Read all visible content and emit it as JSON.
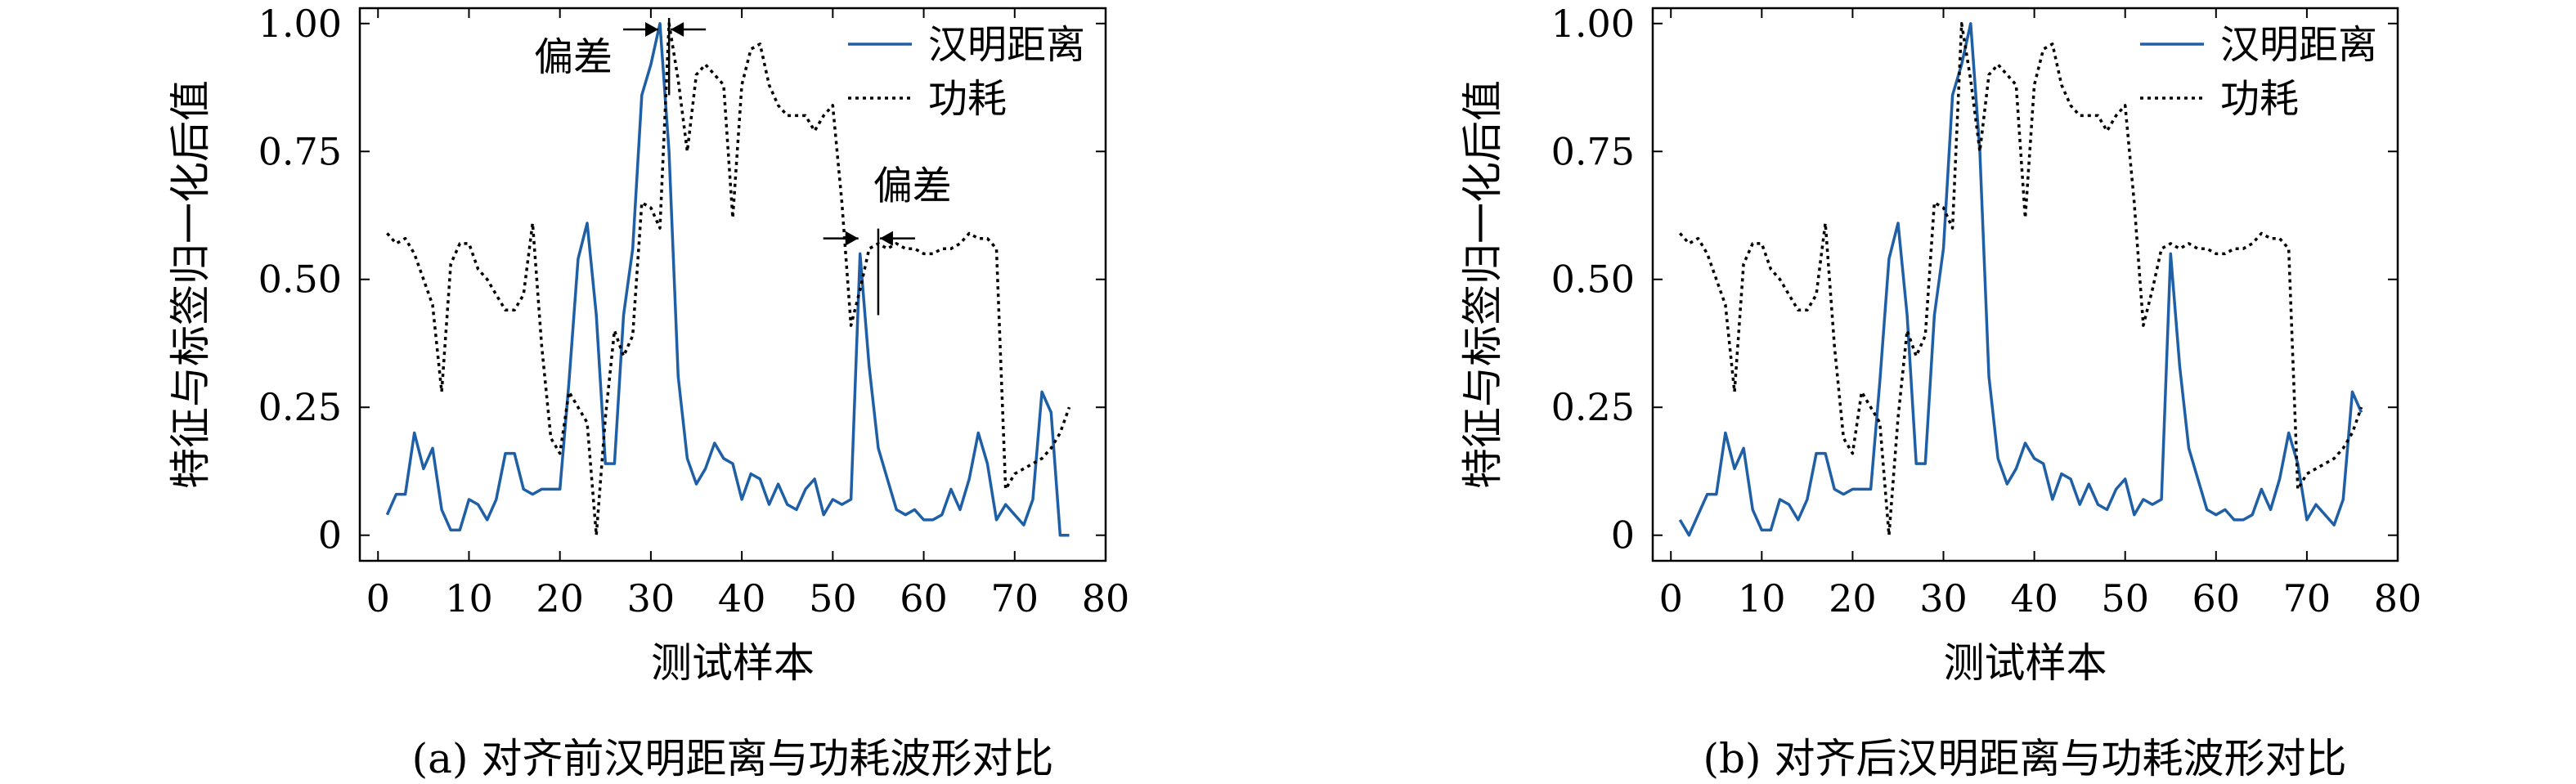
{
  "figure": {
    "colors": {
      "hamming": "#1f5fa6",
      "power": "#000000"
    }
  },
  "chart_data": [
    {
      "type": "line",
      "caption": "(a) 对齐前汉明距离与功耗波形对比",
      "xlabel": "测试样本",
      "ylabel": "特征与标签归一化后值",
      "xlim": [
        -2,
        80
      ],
      "ylim": [
        -0.05,
        1.03
      ],
      "xticks": [
        0,
        10,
        20,
        30,
        40,
        50,
        60,
        70,
        80
      ],
      "yticks": [
        0,
        0.25,
        0.5,
        0.75,
        1.0
      ],
      "ytick_labels": [
        "0",
        "0.25",
        "0.50",
        "0.75",
        "1.00"
      ],
      "legend": {
        "position": "top-right",
        "entries": [
          "汉明距离",
          "功耗"
        ]
      },
      "annotations": [
        "偏差",
        "偏差"
      ],
      "series": [
        {
          "name": "汉明距离",
          "style": "solid",
          "x": [
            1,
            2,
            3,
            4,
            5,
            6,
            7,
            8,
            9,
            10,
            11,
            12,
            13,
            14,
            15,
            16,
            17,
            18,
            19,
            20,
            21,
            22,
            23,
            24,
            25,
            26,
            27,
            28,
            29,
            30,
            31,
            32,
            33,
            34,
            35,
            36,
            37,
            38,
            39,
            40,
            41,
            42,
            43,
            44,
            45,
            46,
            47,
            48,
            49,
            50,
            51,
            52,
            53,
            54,
            55,
            56,
            57,
            58,
            59,
            60,
            61,
            62,
            63,
            64,
            65,
            66,
            67,
            68,
            69,
            70,
            71,
            72,
            73,
            74,
            75,
            76
          ],
          "y": [
            0.04,
            0.08,
            0.08,
            0.2,
            0.13,
            0.17,
            0.05,
            0.01,
            0.01,
            0.07,
            0.06,
            0.03,
            0.07,
            0.16,
            0.16,
            0.09,
            0.08,
            0.09,
            0.09,
            0.09,
            0.3,
            0.54,
            0.61,
            0.43,
            0.14,
            0.14,
            0.43,
            0.56,
            0.86,
            0.92,
            1.0,
            0.75,
            0.31,
            0.15,
            0.1,
            0.13,
            0.18,
            0.15,
            0.14,
            0.07,
            0.12,
            0.11,
            0.06,
            0.1,
            0.06,
            0.05,
            0.09,
            0.11,
            0.04,
            0.07,
            0.06,
            0.07,
            0.55,
            0.33,
            0.17,
            0.11,
            0.05,
            0.04,
            0.05,
            0.03,
            0.03,
            0.04,
            0.09,
            0.05,
            0.11,
            0.2,
            0.14,
            0.03,
            0.06,
            0.04,
            0.02,
            0.07,
            0.28,
            0.24,
            0.0,
            0.0
          ]
        },
        {
          "name": "功耗",
          "style": "dotted",
          "x": [
            1,
            2,
            3,
            4,
            5,
            6,
            7,
            8,
            9,
            10,
            11,
            12,
            13,
            14,
            15,
            16,
            17,
            18,
            19,
            20,
            21,
            22,
            23,
            24,
            25,
            26,
            27,
            28,
            29,
            30,
            31,
            32,
            33,
            34,
            35,
            36,
            37,
            38,
            39,
            40,
            41,
            42,
            43,
            44,
            45,
            46,
            47,
            48,
            49,
            50,
            51,
            52,
            53,
            54,
            55,
            56,
            57,
            58,
            59,
            60,
            61,
            62,
            63,
            64,
            65,
            66,
            67,
            68,
            69,
            70,
            71,
            72,
            73,
            74,
            75,
            76
          ],
          "y": [
            0.59,
            0.57,
            0.58,
            0.55,
            0.5,
            0.45,
            0.28,
            0.53,
            0.57,
            0.57,
            0.52,
            0.5,
            0.47,
            0.44,
            0.44,
            0.47,
            0.61,
            0.37,
            0.19,
            0.16,
            0.28,
            0.25,
            0.22,
            0.0,
            0.23,
            0.4,
            0.35,
            0.39,
            0.65,
            0.64,
            0.6,
            1.0,
            0.89,
            0.75,
            0.9,
            0.92,
            0.9,
            0.88,
            0.62,
            0.88,
            0.95,
            0.96,
            0.88,
            0.84,
            0.82,
            0.82,
            0.82,
            0.79,
            0.82,
            0.84,
            0.65,
            0.41,
            0.48,
            0.56,
            0.57,
            0.56,
            0.57,
            0.56,
            0.56,
            0.55,
            0.55,
            0.56,
            0.56,
            0.57,
            0.59,
            0.58,
            0.58,
            0.56,
            0.09,
            0.12,
            0.13,
            0.14,
            0.15,
            0.17,
            0.2,
            0.25
          ]
        }
      ]
    },
    {
      "type": "line",
      "caption": "(b) 对齐后汉明距离与功耗波形对比",
      "xlabel": "测试样本",
      "ylabel": "特征与标签归一化后值",
      "xlim": [
        -2,
        80
      ],
      "ylim": [
        -0.05,
        1.03
      ],
      "xticks": [
        0,
        10,
        20,
        30,
        40,
        50,
        60,
        70,
        80
      ],
      "yticks": [
        0,
        0.25,
        0.5,
        0.75,
        1.0
      ],
      "ytick_labels": [
        "0",
        "0.25",
        "0.50",
        "0.75",
        "1.00"
      ],
      "legend": {
        "position": "top-right",
        "entries": [
          "汉明距离",
          "功耗"
        ]
      },
      "annotations": [],
      "series": [
        {
          "name": "汉明距离",
          "style": "solid",
          "x": [
            1,
            2,
            3,
            4,
            5,
            6,
            7,
            8,
            9,
            10,
            11,
            12,
            13,
            14,
            15,
            16,
            17,
            18,
            19,
            20,
            21,
            22,
            23,
            24,
            25,
            26,
            27,
            28,
            29,
            30,
            31,
            32,
            33,
            34,
            35,
            36,
            37,
            38,
            39,
            40,
            41,
            42,
            43,
            44,
            45,
            46,
            47,
            48,
            49,
            50,
            51,
            52,
            53,
            54,
            55,
            56,
            57,
            58,
            59,
            60,
            61,
            62,
            63,
            64,
            65,
            66,
            67,
            68,
            69,
            70,
            71,
            72,
            73,
            74,
            75,
            76
          ],
          "y": [
            0.03,
            0.0,
            0.04,
            0.08,
            0.08,
            0.2,
            0.13,
            0.17,
            0.05,
            0.01,
            0.01,
            0.07,
            0.06,
            0.03,
            0.07,
            0.16,
            0.16,
            0.09,
            0.08,
            0.09,
            0.09,
            0.09,
            0.3,
            0.54,
            0.61,
            0.43,
            0.14,
            0.14,
            0.43,
            0.56,
            0.86,
            0.92,
            1.0,
            0.75,
            0.31,
            0.15,
            0.1,
            0.13,
            0.18,
            0.15,
            0.14,
            0.07,
            0.12,
            0.11,
            0.06,
            0.1,
            0.06,
            0.05,
            0.09,
            0.11,
            0.04,
            0.07,
            0.06,
            0.07,
            0.55,
            0.33,
            0.17,
            0.11,
            0.05,
            0.04,
            0.05,
            0.03,
            0.03,
            0.04,
            0.09,
            0.05,
            0.11,
            0.2,
            0.14,
            0.03,
            0.06,
            0.04,
            0.02,
            0.07,
            0.28,
            0.24
          ]
        },
        {
          "name": "功耗",
          "style": "dotted",
          "x": [
            1,
            2,
            3,
            4,
            5,
            6,
            7,
            8,
            9,
            10,
            11,
            12,
            13,
            14,
            15,
            16,
            17,
            18,
            19,
            20,
            21,
            22,
            23,
            24,
            25,
            26,
            27,
            28,
            29,
            30,
            31,
            32,
            33,
            34,
            35,
            36,
            37,
            38,
            39,
            40,
            41,
            42,
            43,
            44,
            45,
            46,
            47,
            48,
            49,
            50,
            51,
            52,
            53,
            54,
            55,
            56,
            57,
            58,
            59,
            60,
            61,
            62,
            63,
            64,
            65,
            66,
            67,
            68,
            69,
            70,
            71,
            72,
            73,
            74,
            75,
            76
          ],
          "y": [
            0.59,
            0.57,
            0.58,
            0.55,
            0.5,
            0.45,
            0.28,
            0.53,
            0.57,
            0.57,
            0.52,
            0.5,
            0.47,
            0.44,
            0.44,
            0.47,
            0.61,
            0.37,
            0.19,
            0.16,
            0.28,
            0.25,
            0.22,
            0.0,
            0.23,
            0.4,
            0.35,
            0.39,
            0.65,
            0.64,
            0.6,
            1.0,
            0.89,
            0.75,
            0.9,
            0.92,
            0.9,
            0.88,
            0.62,
            0.88,
            0.95,
            0.96,
            0.88,
            0.84,
            0.82,
            0.82,
            0.82,
            0.79,
            0.82,
            0.84,
            0.65,
            0.41,
            0.48,
            0.56,
            0.57,
            0.56,
            0.57,
            0.56,
            0.56,
            0.55,
            0.55,
            0.56,
            0.56,
            0.57,
            0.59,
            0.58,
            0.58,
            0.56,
            0.09,
            0.12,
            0.13,
            0.14,
            0.15,
            0.17,
            0.2,
            0.25
          ]
        }
      ]
    }
  ]
}
